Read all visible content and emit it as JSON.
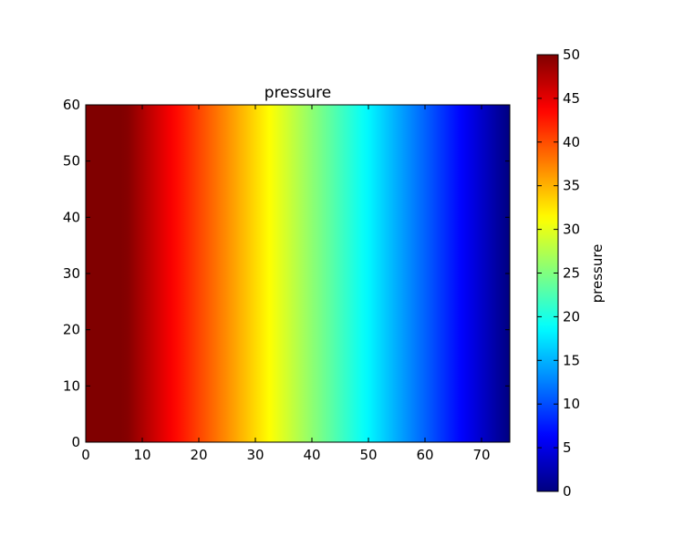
{
  "chart_data": {
    "type": "heatmap",
    "title": "pressure",
    "xlabel": "",
    "ylabel": "",
    "xlim": [
      0,
      75
    ],
    "ylim": [
      0,
      60
    ],
    "x_ticks": [
      0,
      10,
      20,
      30,
      40,
      50,
      60,
      70
    ],
    "y_ticks": [
      0,
      10,
      20,
      30,
      40,
      50,
      60
    ],
    "grid": false,
    "colormap": "jet",
    "field": {
      "description": "pressure varies linearly along x, constant along y",
      "x": [
        0,
        7,
        75
      ],
      "pressure": [
        50,
        50,
        0
      ]
    },
    "colorbar": {
      "label": "pressure",
      "range": [
        0,
        50
      ],
      "ticks": [
        0,
        5,
        10,
        15,
        20,
        25,
        30,
        35,
        40,
        45,
        50
      ],
      "placement": "right"
    }
  }
}
